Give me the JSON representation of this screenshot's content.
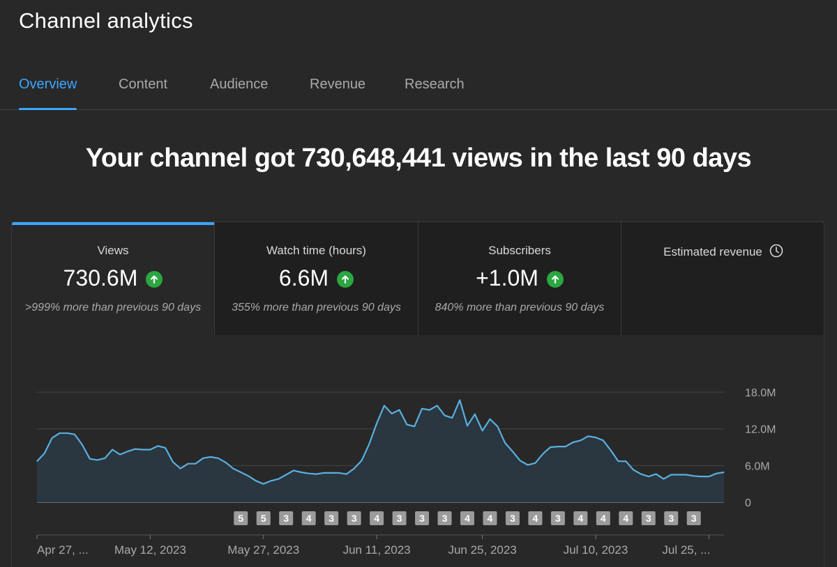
{
  "page_title": "Channel analytics",
  "tabs": [
    {
      "label": "Overview",
      "active": true
    },
    {
      "label": "Content",
      "active": false
    },
    {
      "label": "Audience",
      "active": false
    },
    {
      "label": "Revenue",
      "active": false
    },
    {
      "label": "Research",
      "active": false
    }
  ],
  "headline": "Your channel got 730,648,441 views in the last 90 days",
  "cards": [
    {
      "label": "Views",
      "value": "730.6M",
      "trend": "up",
      "comparison": ">999% more than previous 90 days",
      "selected": true
    },
    {
      "label": "Watch time (hours)",
      "value": "6.6M",
      "trend": "up",
      "comparison": "355% more than previous 90 days",
      "selected": false
    },
    {
      "label": "Subscribers",
      "value": "+1.0M",
      "trend": "up",
      "comparison": "840% more than previous 90 days",
      "selected": false
    },
    {
      "label": "Estimated revenue",
      "value": "",
      "trend": "",
      "comparison": "",
      "selected": false,
      "icon": "clock-icon"
    }
  ],
  "colors": {
    "accent": "#3ea6ff",
    "line": "#5ab0e0",
    "up": "#2ba640",
    "background": "#282828",
    "card_inactive": "#1f1f1f"
  },
  "chart_data": {
    "type": "area",
    "series": [
      {
        "metric": "Views",
        "values": [
          6.7,
          8.0,
          10.5,
          11.3,
          11.3,
          11.1,
          9.4,
          7.1,
          6.9,
          7.2,
          8.6,
          7.8,
          8.3,
          8.7,
          8.6,
          8.6,
          9.2,
          8.9,
          6.6,
          5.5,
          6.3,
          6.3,
          7.2,
          7.4,
          7.2,
          6.5,
          5.5,
          4.9,
          4.3,
          3.5,
          3.0,
          3.5,
          3.8,
          4.5,
          5.2,
          4.9,
          4.7,
          4.6,
          4.8,
          4.8,
          4.8,
          4.6,
          5.5,
          6.8,
          9.5,
          12.9,
          15.8,
          14.5,
          15.1,
          12.7,
          12.4,
          15.3,
          15.1,
          15.8,
          14.2,
          13.8,
          16.7,
          12.5,
          14.4,
          11.7,
          13.6,
          12.4,
          9.7,
          8.3,
          6.8,
          6.1,
          6.4,
          7.9,
          9.0,
          9.1,
          9.1,
          9.8,
          10.1,
          10.8,
          10.6,
          10.1,
          8.5,
          6.7,
          6.7,
          5.3,
          4.6,
          4.2,
          4.6,
          3.8,
          4.5,
          4.5,
          4.5,
          4.3,
          4.2,
          4.2,
          4.7,
          4.9
        ]
      }
    ],
    "y_ticks": [
      "18.0M",
      "12.0M",
      "6.0M",
      "0"
    ],
    "ylim": [
      0,
      18
    ],
    "x_tick_labels": [
      "Apr 27, ...",
      "May 12, 2023",
      "May 27, 2023",
      "Jun 11, 2023",
      "Jun 25, 2023",
      "Jul 10, 2023",
      "Jul 25, ..."
    ],
    "x_tick_index": [
      0,
      15,
      30,
      45,
      59,
      74,
      89
    ],
    "markers": [
      {
        "label": "5",
        "index": 27
      },
      {
        "label": "5",
        "index": 30
      },
      {
        "label": "3",
        "index": 33
      },
      {
        "label": "4",
        "index": 36
      },
      {
        "label": "3",
        "index": 39
      },
      {
        "label": "3",
        "index": 42
      },
      {
        "label": "4",
        "index": 45
      },
      {
        "label": "3",
        "index": 48
      },
      {
        "label": "3",
        "index": 51
      },
      {
        "label": "3",
        "index": 54
      },
      {
        "label": "4",
        "index": 57
      },
      {
        "label": "4",
        "index": 60
      },
      {
        "label": "3",
        "index": 63
      },
      {
        "label": "4",
        "index": 66
      },
      {
        "label": "3",
        "index": 69
      },
      {
        "label": "4",
        "index": 72
      },
      {
        "label": "4",
        "index": 75
      },
      {
        "label": "4",
        "index": 78
      },
      {
        "label": "3",
        "index": 81
      },
      {
        "label": "3",
        "index": 84
      },
      {
        "label": "3",
        "index": 87
      }
    ],
    "grid": true,
    "y_axis_position": "right"
  }
}
